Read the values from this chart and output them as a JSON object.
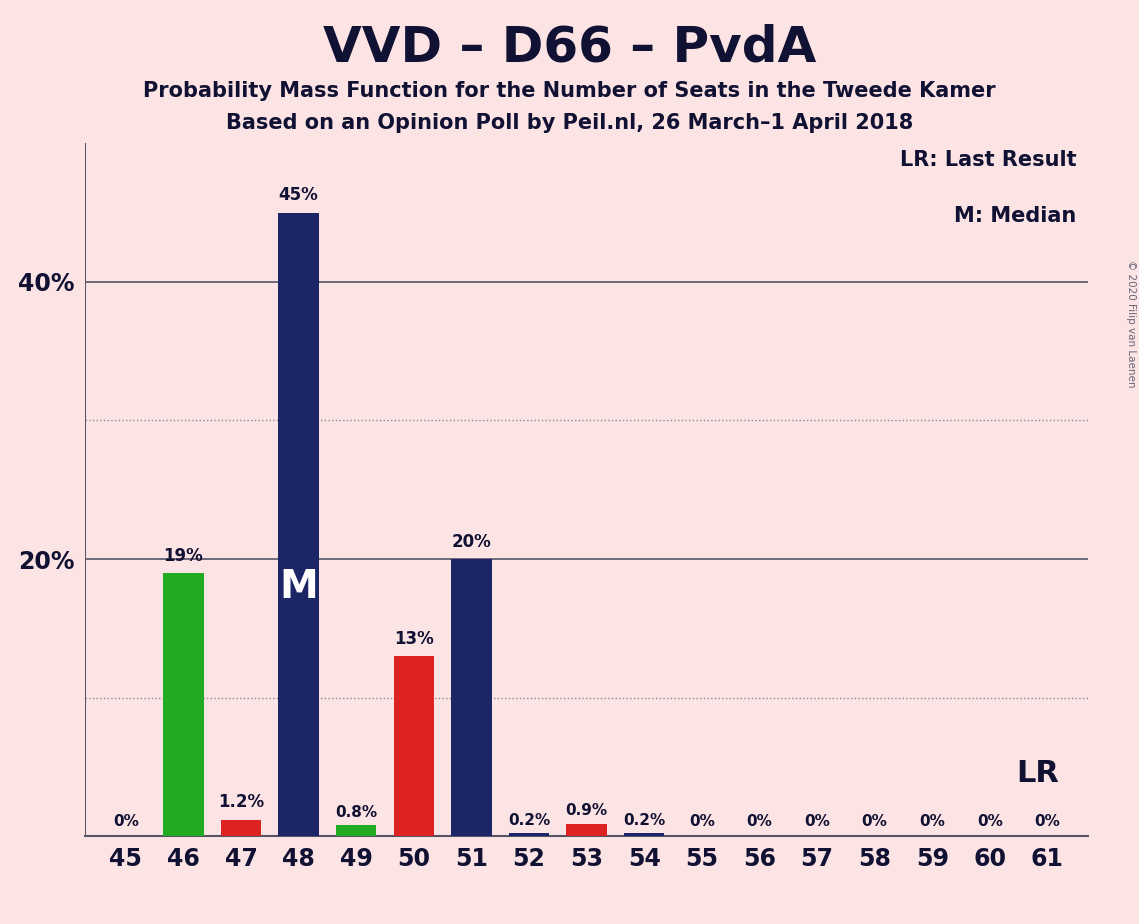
{
  "title": "VVD – D66 – PvdA",
  "subtitle1": "Probability Mass Function for the Number of Seats in the Tweede Kamer",
  "subtitle2": "Based on an Opinion Poll by Peil.nl, 26 March–1 April 2018",
  "copyright": "© 2020 Filip van Laenen",
  "legend_lr": "LR: Last Result",
  "legend_m": "M: Median",
  "lr_label": "LR",
  "median_label": "M",
  "background_color": "#fce4e4",
  "bar_colors": {
    "navy": "#1c2566",
    "green": "#22aa22",
    "red": "#dd2222"
  },
  "seats": [
    45,
    46,
    47,
    48,
    49,
    50,
    51,
    52,
    53,
    54,
    55,
    56,
    57,
    58,
    59,
    60,
    61
  ],
  "values": [
    0.0,
    19.0,
    1.2,
    45.0,
    0.8,
    13.0,
    20.0,
    0.2,
    0.9,
    0.2,
    0.0,
    0.0,
    0.0,
    0.0,
    0.0,
    0.0,
    0.0
  ],
  "colors": [
    "navy",
    "green",
    "red",
    "navy",
    "green",
    "red",
    "navy",
    "navy",
    "red",
    "navy",
    "navy",
    "navy",
    "navy",
    "navy",
    "navy",
    "navy",
    "navy"
  ],
  "labels": [
    "0%",
    "19%",
    "1.2%",
    "45%",
    "0.8%",
    "13%",
    "20%",
    "0.2%",
    "0.9%",
    "0.2%",
    "0%",
    "0%",
    "0%",
    "0%",
    "0%",
    "0%",
    "0%"
  ],
  "median_seat": 48,
  "lr_seat": 61,
  "solid_gridlines": [
    20,
    40
  ],
  "dotted_gridlines": [
    10,
    30
  ],
  "ylabel_values": [
    20,
    40
  ],
  "ylabel_labels": [
    "20%",
    "40%"
  ]
}
